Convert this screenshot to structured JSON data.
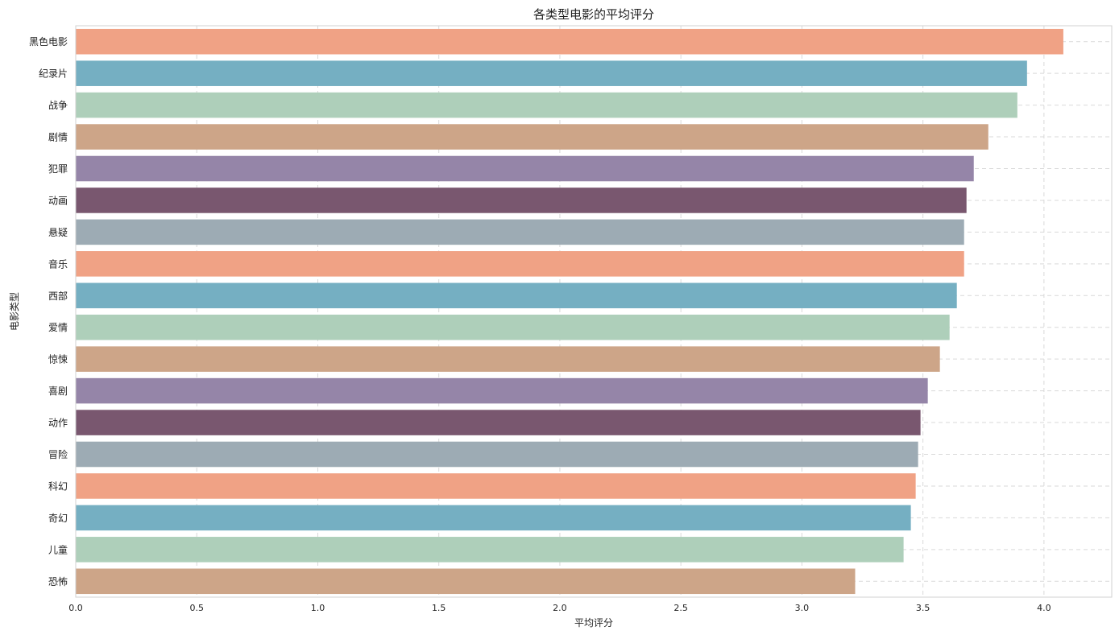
{
  "chart_data": {
    "type": "bar",
    "orientation": "horizontal",
    "title": "各类型电影的平均评分",
    "xlabel": "平均评分",
    "ylabel": "电影类型",
    "xlim": [
      0,
      4.28
    ],
    "xticks": [
      0.0,
      0.5,
      1.0,
      1.5,
      2.0,
      2.5,
      3.0,
      3.5,
      4.0
    ],
    "xtick_labels": [
      "0.0",
      "0.5",
      "1.0",
      "1.5",
      "2.0",
      "2.5",
      "3.0",
      "3.5",
      "4.0"
    ],
    "grid": true,
    "categories": [
      "黑色电影",
      "纪录片",
      "战争",
      "剧情",
      "犯罪",
      "动画",
      "悬疑",
      "音乐",
      "西部",
      "爱情",
      "惊悚",
      "喜剧",
      "动作",
      "冒险",
      "科幻",
      "奇幻",
      "儿童",
      "恐怖"
    ],
    "values": [
      4.08,
      3.93,
      3.89,
      3.77,
      3.71,
      3.68,
      3.67,
      3.67,
      3.64,
      3.61,
      3.57,
      3.52,
      3.49,
      3.48,
      3.47,
      3.45,
      3.42,
      3.22
    ],
    "colors": [
      "#f0a285",
      "#75afc2",
      "#aecfba",
      "#cda588",
      "#9585a8",
      "#79576f",
      "#9dabb4",
      "#f0a285",
      "#75afc2",
      "#aecfba",
      "#cda588",
      "#9585a8",
      "#79576f",
      "#9dabb4",
      "#f0a285",
      "#75afc2",
      "#aecfba",
      "#cda588"
    ]
  }
}
